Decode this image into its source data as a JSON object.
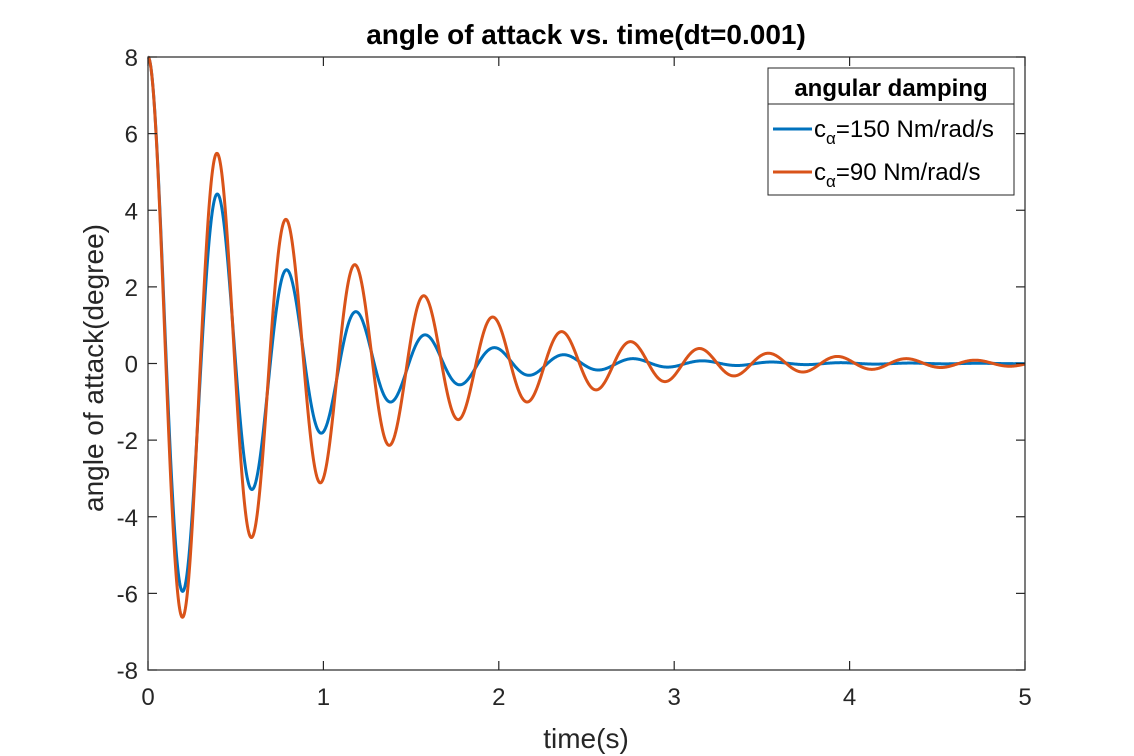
{
  "chart_data": {
    "type": "line",
    "title": "angle of attack vs. time(dt=0.001)",
    "xlabel": "time(s)",
    "ylabel": "angle of attack(degree)",
    "xlim": [
      0,
      5
    ],
    "ylim": [
      -8,
      8
    ],
    "xticks": [
      0,
      1,
      2,
      3,
      4,
      5
    ],
    "yticks": [
      -8,
      -6,
      -4,
      -2,
      0,
      2,
      4,
      6,
      8
    ],
    "xtick_labels": [
      "0",
      "1",
      "2",
      "3",
      "4",
      "5"
    ],
    "ytick_labels": [
      "-8",
      "-6",
      "-4",
      "-2",
      "0",
      "2",
      "4",
      "6",
      "8"
    ],
    "grid": false,
    "legend": {
      "title": "angular damping",
      "placement": "top-right"
    },
    "series": [
      {
        "name": "c_α=150 Nm/rad/s",
        "legend_base": "c",
        "legend_sub": "α",
        "legend_rest": "=150 Nm/rad/s",
        "color": "#0072BD",
        "initial_value": 8,
        "damped_period": 0.395,
        "decay_rate": 1.5,
        "x": [
          0,
          0.2,
          0.4,
          0.595,
          0.79,
          0.99,
          1.185,
          1.385,
          1.58,
          1.78,
          1.975,
          2.17,
          2.37,
          2.565,
          2.76,
          2.96,
          3.16,
          3.36,
          3.55,
          3.75,
          3.95,
          4.15,
          4.35,
          4.55,
          4.75,
          5
        ],
        "y": [
          8,
          -5.85,
          4.25,
          -3.1,
          2.27,
          -1.66,
          1.22,
          -0.89,
          0.65,
          -0.48,
          0.35,
          -0.26,
          0.19,
          -0.14,
          0.1,
          -0.07,
          0.05,
          -0.04,
          0.03,
          -0.02,
          0.01,
          -0.01,
          0.01,
          0,
          0,
          0
        ]
      },
      {
        "name": "c_α=90 Nm/rad/s",
        "legend_base": "c",
        "legend_sub": "α",
        "legend_rest": "=90 Nm/rad/s",
        "color": "#D95319",
        "initial_value": 8,
        "damped_period": 0.393,
        "decay_rate": 0.96,
        "x": [
          0,
          0.2,
          0.395,
          0.595,
          0.79,
          0.99,
          1.185,
          1.38,
          1.575,
          1.775,
          1.97,
          2.165,
          2.36,
          2.56,
          2.755,
          2.95,
          3.145,
          3.345,
          3.54,
          3.735,
          3.935,
          4.13,
          4.325,
          4.52,
          4.72,
          4.915
        ],
        "y": [
          8,
          -6.6,
          5.4,
          -4.45,
          3.65,
          -3.02,
          2.48,
          -2.04,
          1.68,
          -1.38,
          1.14,
          -0.94,
          0.77,
          -0.64,
          0.52,
          -0.43,
          0.36,
          -0.29,
          0.24,
          -0.2,
          0.16,
          -0.13,
          0.11,
          -0.09,
          0.07,
          -0.06
        ]
      }
    ]
  }
}
